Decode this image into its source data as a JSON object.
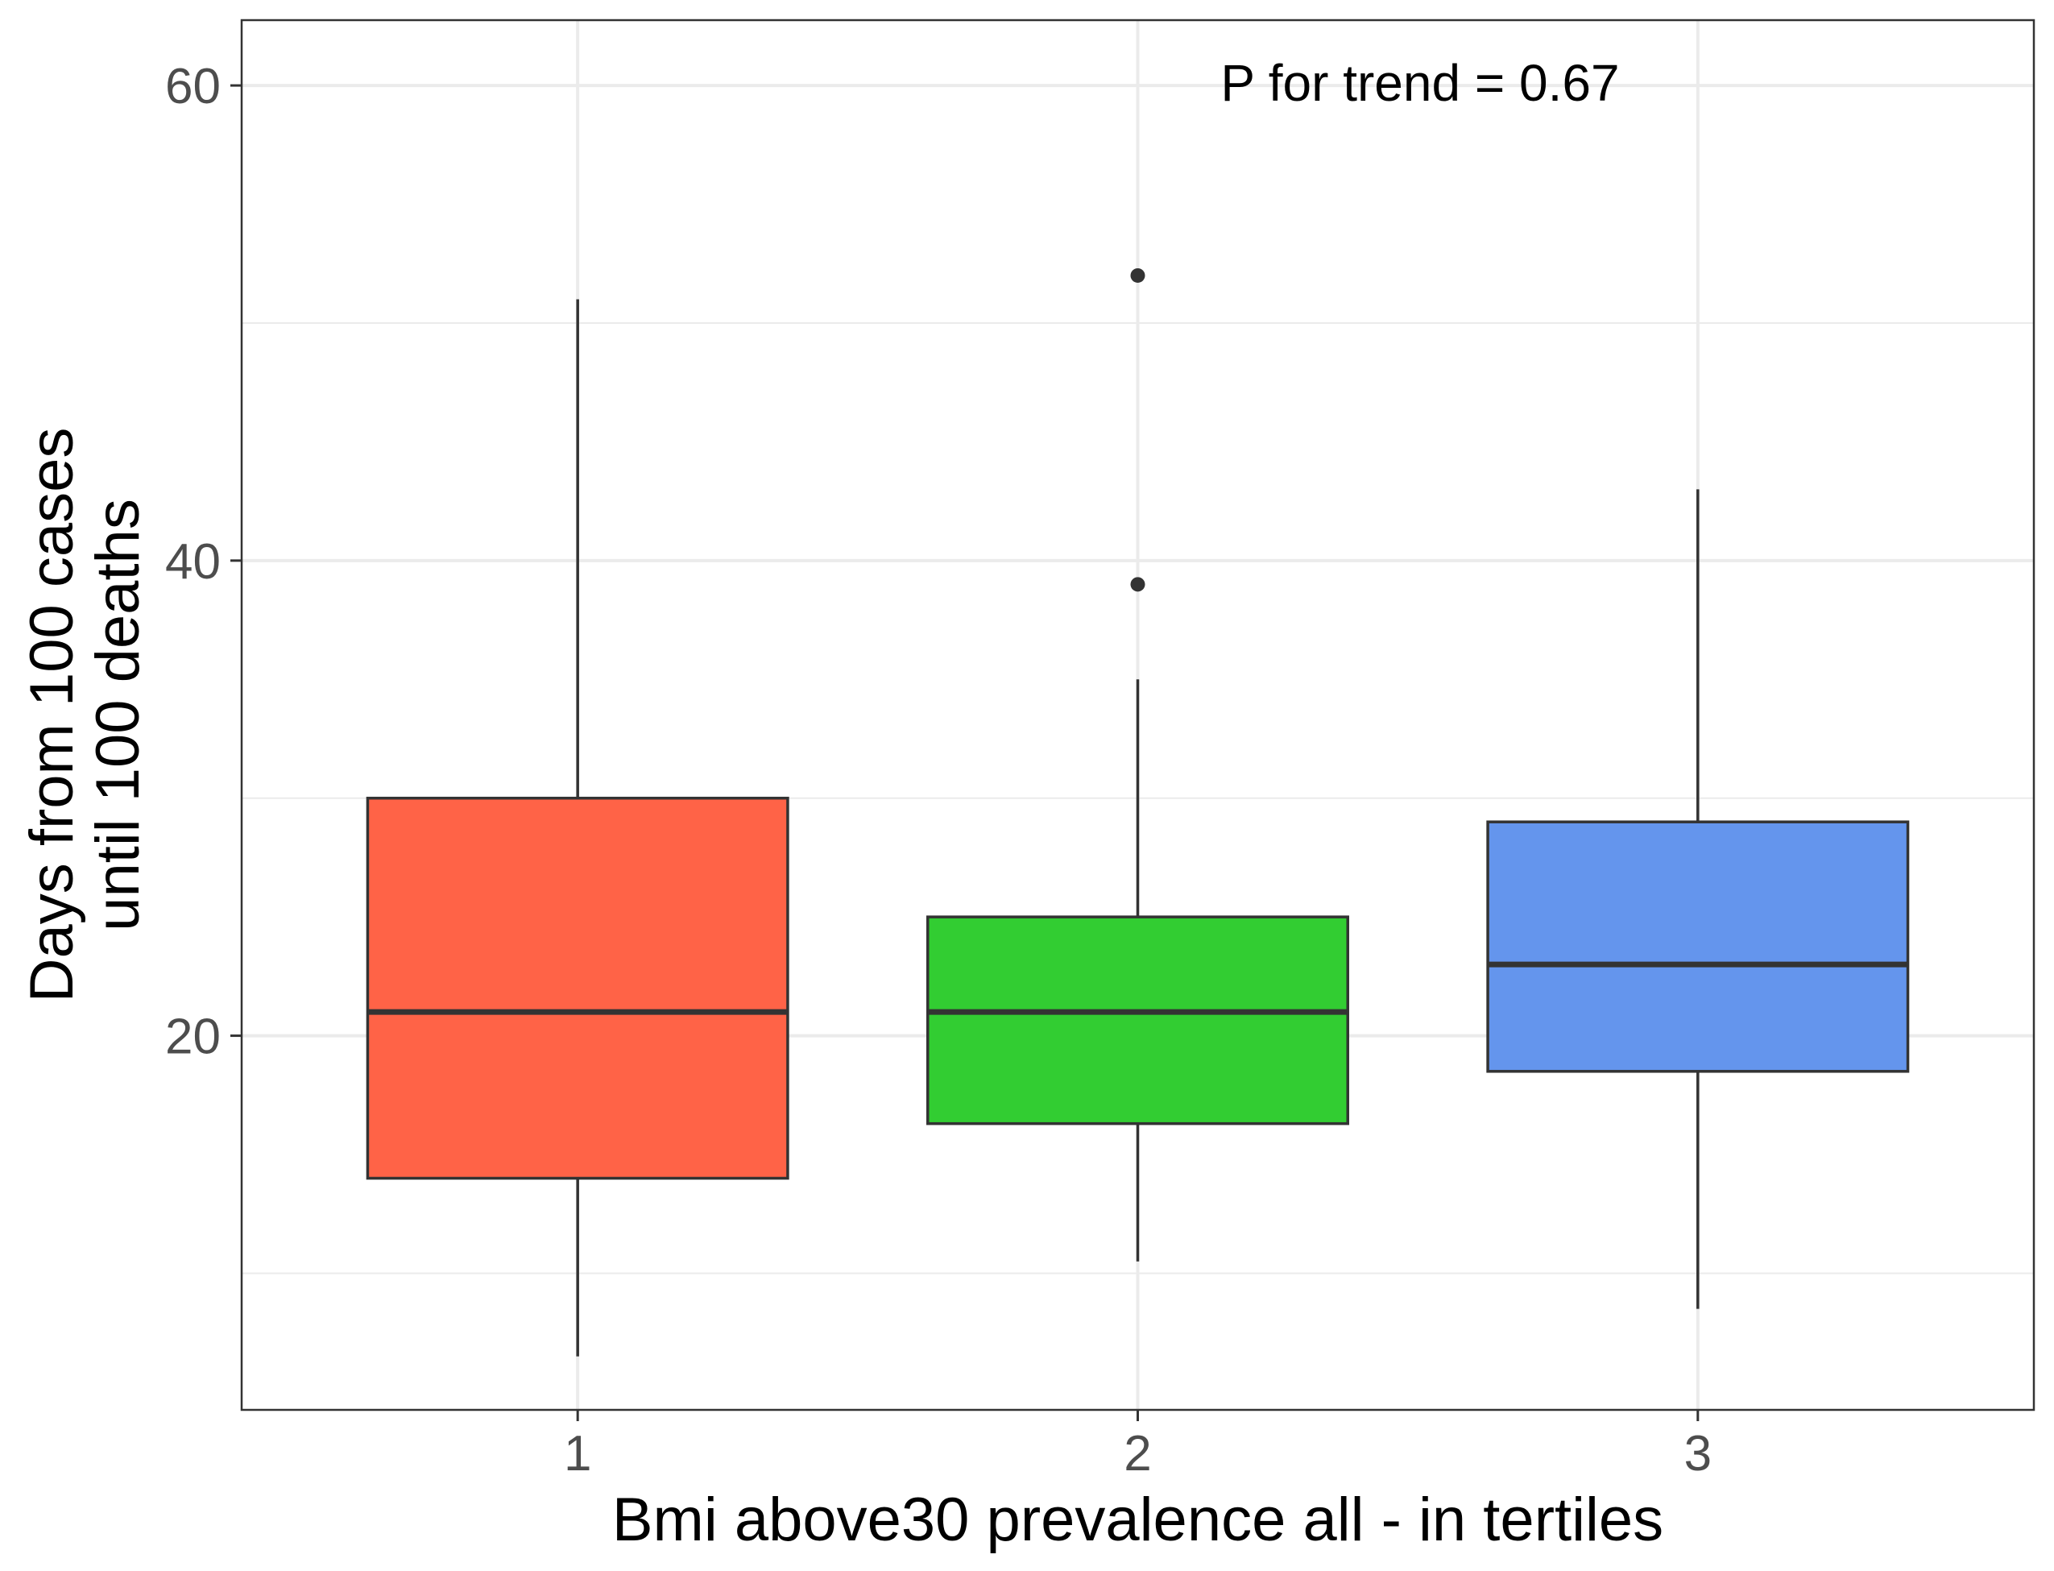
{
  "chart_data": {
    "type": "boxplot",
    "categories": [
      "1",
      "2",
      "3"
    ],
    "boxes": [
      {
        "category": "1",
        "fill": "#FF6347",
        "whisker_low": 6.5,
        "q1": 14,
        "median": 21,
        "q3": 30,
        "whisker_high": 51,
        "outliers": []
      },
      {
        "category": "2",
        "fill": "#32CD32",
        "whisker_low": 10.5,
        "q1": 16.3,
        "median": 21,
        "q3": 25,
        "whisker_high": 35,
        "outliers": [
          39,
          52
        ]
      },
      {
        "category": "3",
        "fill": "#6495ED",
        "whisker_low": 8.5,
        "q1": 18.5,
        "median": 23,
        "q3": 29,
        "whisker_high": 43,
        "outliers": []
      }
    ],
    "title": "",
    "xlabel": "Bmi above30 prevalence all - in tertiles",
    "ylabel_lines": [
      "Days from 100 cases",
      "until 100 deaths"
    ],
    "y_ticks": [
      20,
      40,
      60
    ],
    "y_tick_labels": [
      "20",
      "40",
      "60"
    ],
    "y_minor_ticks": [
      10,
      30,
      50
    ],
    "ylim": [
      4.25,
      62.75
    ],
    "annotation": "P for trend = 0.67",
    "grid": true,
    "legend": "none",
    "colors": {
      "box_outline": "#333333",
      "grid": "#ebebeb",
      "panel_border": "#333333",
      "tick_text": "#4d4d4d",
      "outlier": "#333333"
    }
  }
}
